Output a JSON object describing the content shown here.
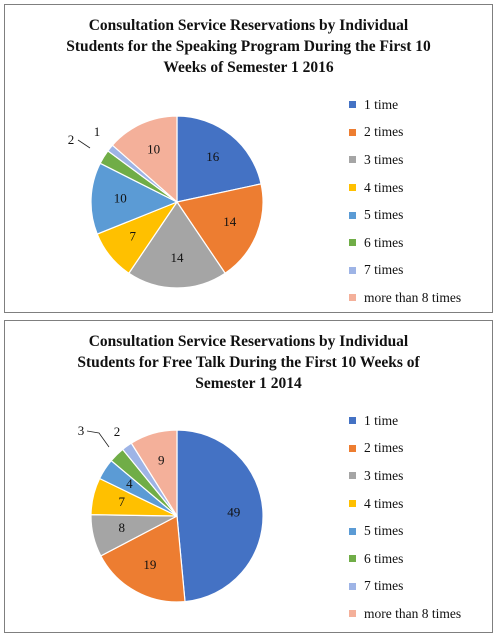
{
  "colors": [
    "#4472c4",
    "#ed7d31",
    "#a5a5a5",
    "#ffc000",
    "#5b9bd5",
    "#70ad47",
    "#9eb4e6",
    "#f4b09a"
  ],
  "chart_data": [
    {
      "type": "pie",
      "title_lines": [
        "Consultation Service Reservations by Individual",
        "Students for the Speaking Program During the First 10",
        "Weeks of Semester 1 2016"
      ],
      "categories": [
        "1 time",
        "2 times",
        "3 times",
        "4 times",
        "5 times",
        "6 times",
        "7 times",
        "more than 8 times"
      ],
      "values": [
        16,
        14,
        14,
        7,
        10,
        2,
        1,
        10
      ],
      "data_labels": [
        "16",
        "14",
        "14",
        "7",
        "10",
        "2",
        "1",
        "10"
      ],
      "legend": "right"
    },
    {
      "type": "pie",
      "title_lines": [
        "Consultation Service Reservations by Individual",
        "Students for Free Talk During the First 10 Weeks of",
        "Semester 1 2014"
      ],
      "categories": [
        "1 time",
        "2 times",
        "3 times",
        "4 times",
        "5 times",
        "6 times",
        "7 times",
        "more than 8 times"
      ],
      "values": [
        49,
        19,
        8,
        7,
        4,
        3,
        2,
        9
      ],
      "data_labels": [
        "49",
        "19",
        "8",
        "7",
        "4",
        "3",
        "2",
        "9"
      ],
      "legend": "right"
    }
  ]
}
